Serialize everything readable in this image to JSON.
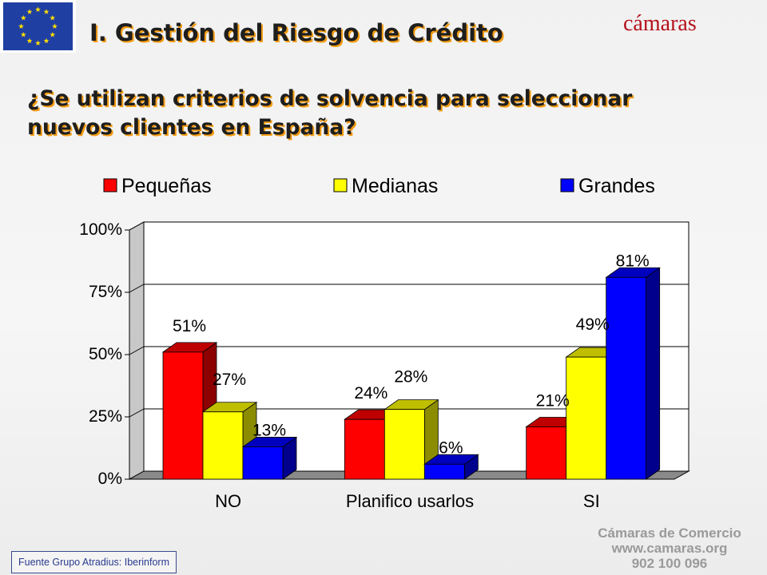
{
  "header": {
    "title": "I. Gestión del Riesgo de Crédito",
    "logo_text": "cámaras",
    "eu_flag_icon": "eu-flag-icon"
  },
  "question": {
    "line1": "¿Se utilizan criterios de solvencia para seleccionar",
    "line2": "nuevos clientes en España?"
  },
  "chart_data": {
    "type": "bar",
    "categories": [
      "NO",
      "Planifico usarlos",
      "SI"
    ],
    "series": [
      {
        "name": "Pequeñas",
        "values": [
          51,
          24,
          21
        ],
        "labels": [
          "51%",
          "24%",
          "21%"
        ]
      },
      {
        "name": "Medianas",
        "values": [
          27,
          28,
          49
        ],
        "labels": [
          "27%",
          "28%",
          "49%"
        ]
      },
      {
        "name": "Grandes",
        "values": [
          13,
          6,
          81
        ],
        "labels": [
          "13%",
          "6%",
          "81%"
        ]
      }
    ],
    "ylim": [
      0,
      100
    ],
    "yticks": [
      0,
      25,
      50,
      75,
      100
    ],
    "ytick_labels": [
      "0%",
      "25%",
      "50%",
      "75%",
      "100%"
    ],
    "grid": true,
    "legend": "top",
    "three_d": true,
    "colors": {
      "Pequeñas": "#ff0000",
      "Medianas": "#ffff00",
      "Grandes": "#0000ff"
    }
  },
  "footer": {
    "source": "Fuente Grupo Atradius:  Iberinform",
    "contact_name": "Cámaras de Comercio",
    "contact_web": "www.camaras.org",
    "contact_phone": "902 100 096"
  }
}
